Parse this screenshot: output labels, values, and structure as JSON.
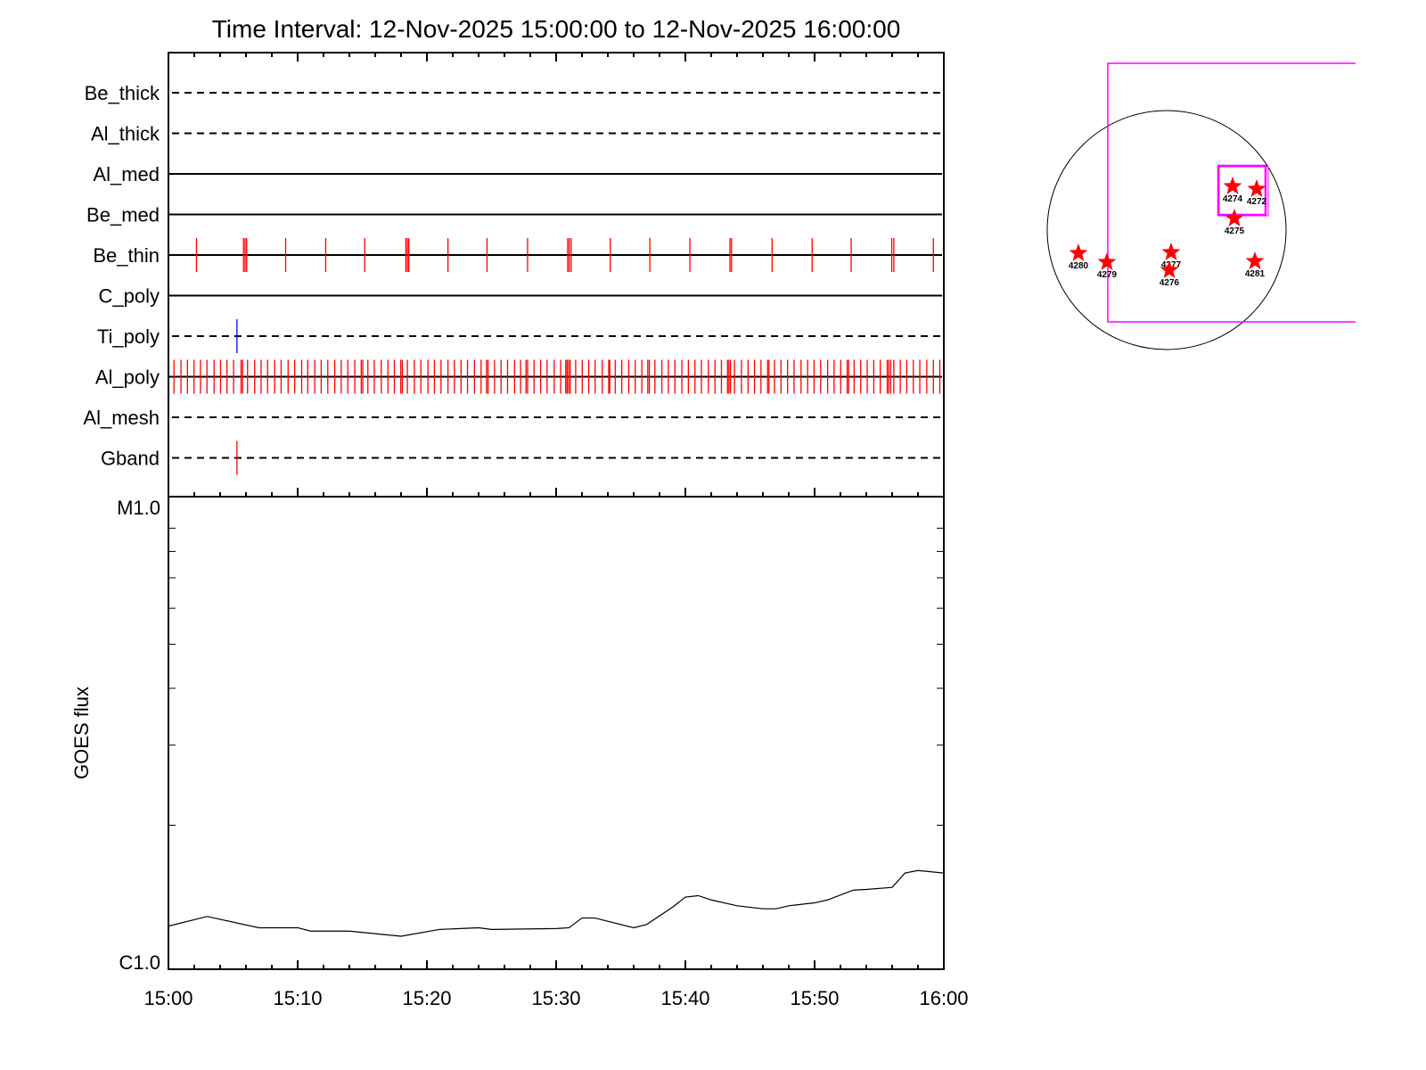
{
  "chart_data": [
    {
      "type": "event-timeline",
      "title": "Time Interval: 12-Nov-2025 15:00:00 to 12-Nov-2025 16:00:00",
      "xlim": [
        "15:00",
        "16:00"
      ],
      "x_unit": "minutes after 15:00",
      "rows": [
        {
          "label": "Be_thick",
          "line": "dashed",
          "events": []
        },
        {
          "label": "Al_thick",
          "line": "dashed",
          "events": []
        },
        {
          "label": "Al_med",
          "line": "solid",
          "events": []
        },
        {
          "label": "Be_med",
          "line": "solid",
          "events": []
        },
        {
          "label": "Be_thin",
          "line": "solid",
          "color": "#ff0000",
          "events": [
            2.17,
            5.81,
            5.93,
            6.05,
            9.07,
            12.17,
            15.19,
            18.37,
            18.49,
            18.6,
            21.63,
            24.65,
            27.79,
            30.89,
            31.01,
            31.16,
            34.19,
            37.25,
            40.35,
            43.45,
            43.57,
            46.71,
            49.81,
            52.83,
            55.97,
            56.13,
            59.19
          ]
        },
        {
          "label": "C_poly",
          "line": "solid",
          "events": []
        },
        {
          "label": "Ti_poly",
          "line": "dashed",
          "color": "#0000ff",
          "events": [
            5.3
          ]
        },
        {
          "label": "Al_poly",
          "line": "solid",
          "color": "#ff0000",
          "events": [
            0.43,
            0.97,
            1.47,
            1.98,
            2.48,
            2.98,
            3.53,
            4.03,
            4.53,
            5.04,
            5.62,
            5.74,
            6.12,
            6.67,
            7.17,
            7.67,
            8.22,
            8.72,
            9.26,
            9.77,
            10.31,
            10.78,
            11.32,
            11.82,
            12.33,
            12.87,
            13.37,
            13.88,
            14.42,
            14.92,
            15.04,
            15.43,
            15.93,
            16.47,
            16.98,
            17.48,
            17.98,
            18.1,
            18.49,
            19.03,
            19.53,
            20.08,
            20.58,
            21.09,
            21.63,
            22.13,
            22.64,
            23.14,
            23.68,
            24.19,
            24.61,
            24.73,
            25.23,
            25.74,
            26.24,
            26.78,
            27.25,
            27.67,
            27.79,
            28.29,
            28.8,
            29.3,
            29.85,
            30.35,
            30.74,
            30.85,
            30.97,
            31.09,
            31.51,
            32.02,
            32.52,
            33.02,
            33.57,
            34.07,
            34.15,
            34.57,
            35.08,
            35.62,
            36.12,
            36.63,
            37.09,
            37.21,
            37.64,
            38.18,
            38.68,
            39.19,
            39.73,
            40.23,
            40.74,
            41.24,
            41.78,
            42.29,
            42.79,
            43.26,
            43.37,
            43.49,
            43.8,
            44.34,
            44.85,
            45.35,
            45.85,
            46.36,
            46.47,
            46.9,
            47.4,
            47.91,
            48.41,
            48.95,
            49.46,
            49.96,
            50.47,
            51.01,
            51.51,
            52.02,
            52.52,
            52.64,
            53.06,
            53.57,
            54.07,
            54.58,
            55.08,
            55.62,
            55.74,
            55.89,
            56.13,
            56.63,
            57.13,
            57.64,
            58.14,
            58.68,
            59.19,
            59.69
          ]
        },
        {
          "label": "Al_mesh",
          "line": "dashed",
          "events": []
        },
        {
          "label": "Gband",
          "line": "dashed",
          "color": "#ff0000",
          "events": [
            5.3
          ]
        }
      ]
    },
    {
      "type": "line",
      "ylabel": "GOES flux",
      "yscale": "log",
      "ylim": [
        1e-06,
        1e-05
      ],
      "ytick_labels": [
        "C1.0",
        "M1.0"
      ],
      "xtick_labels": [
        "15:00",
        "15:10",
        "15:20",
        "15:30",
        "15:40",
        "15:50",
        "16:00"
      ],
      "x": [
        0,
        3,
        7,
        10,
        11,
        14,
        18,
        21,
        24,
        25,
        30,
        31,
        32,
        33,
        36,
        37,
        39,
        40,
        41,
        42,
        44,
        46,
        47,
        48,
        50,
        51,
        53,
        54,
        56,
        57,
        58,
        60
      ],
      "y": [
        1.2e-06,
        1.26e-06,
        1.19e-06,
        1.19e-06,
        1.17e-06,
        1.17e-06,
        1.14e-06,
        1.18e-06,
        1.19e-06,
        1.18e-06,
        1.185e-06,
        1.19e-06,
        1.25e-06,
        1.25e-06,
        1.19e-06,
        1.21e-06,
        1.32e-06,
        1.39e-06,
        1.4e-06,
        1.37e-06,
        1.33e-06,
        1.31e-06,
        1.31e-06,
        1.33e-06,
        1.35e-06,
        1.37e-06,
        1.44e-06,
        1.445e-06,
        1.46e-06,
        1.57e-06,
        1.59e-06,
        1.57e-06
      ],
      "grid": false
    },
    {
      "type": "scatter",
      "description_type": "solar-disk map",
      "colors": {
        "disk": "#000000",
        "fov": "#ff00ff",
        "regions": "#ff0000"
      },
      "regions": [
        {
          "label": "4274"
        },
        {
          "label": "4272"
        },
        {
          "label": "4275"
        },
        {
          "label": "4280"
        },
        {
          "label": "4279"
        },
        {
          "label": "4277"
        },
        {
          "label": "4276"
        },
        {
          "label": "4281"
        }
      ]
    }
  ]
}
